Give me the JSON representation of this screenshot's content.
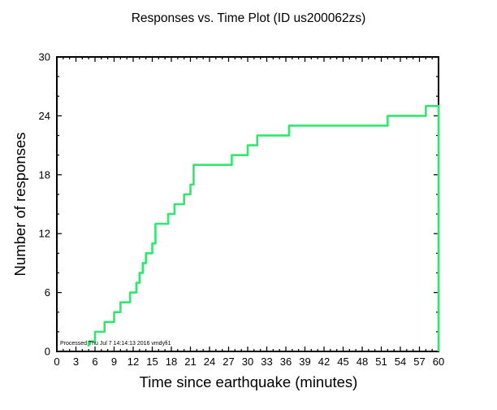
{
  "page": {
    "background": "#ffffff"
  },
  "chart_data": {
    "type": "line",
    "style": "step-after-cumulative",
    "title": "Responses vs. Time Plot (ID us200062zs)",
    "xlabel": "Time since earthquake (minutes)",
    "ylabel": "Number of responses",
    "xlim": [
      0,
      60
    ],
    "ylim": [
      0,
      30
    ],
    "xtick_step": 3,
    "x_minor_step": 1,
    "ytick_step": 6,
    "y_minor_step": 2,
    "grid": false,
    "legend": null,
    "line_color": "#2fe86e",
    "axis_color": "#000000",
    "points": [
      [
        5,
        1
      ],
      [
        6,
        2
      ],
      [
        7.5,
        3
      ],
      [
        9,
        4
      ],
      [
        10,
        5
      ],
      [
        11.5,
        6
      ],
      [
        12.5,
        7
      ],
      [
        13,
        8
      ],
      [
        13.5,
        9
      ],
      [
        14,
        10
      ],
      [
        15,
        11
      ],
      [
        15.5,
        13
      ],
      [
        17.5,
        14
      ],
      [
        18.5,
        15
      ],
      [
        20,
        16
      ],
      [
        21,
        17
      ],
      [
        21.5,
        19
      ],
      [
        27.5,
        20
      ],
      [
        30,
        21
      ],
      [
        31.5,
        22
      ],
      [
        36.5,
        23
      ],
      [
        52,
        24
      ],
      [
        58,
        25
      ]
    ],
    "end_drop": {
      "x": 60,
      "to": 0
    },
    "processed_note": "Processed Thu Jul 7 14:14:13 2016 vmdyfi1"
  }
}
